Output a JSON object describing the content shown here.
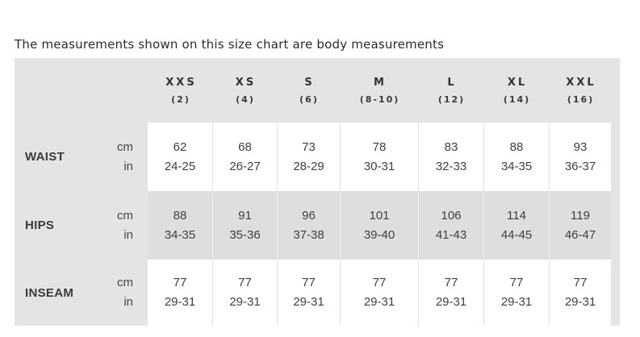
{
  "page": {
    "title": "The measurements shown on this size chart are body measurements"
  },
  "table": {
    "columns": [
      {
        "size": "XXS",
        "numeric": "(2)"
      },
      {
        "size": "XS",
        "numeric": "(4)"
      },
      {
        "size": "S",
        "numeric": "(6)"
      },
      {
        "size": "M",
        "numeric": "(8-10)"
      },
      {
        "size": "L",
        "numeric": "(12)"
      },
      {
        "size": "XL",
        "numeric": "(14)"
      },
      {
        "size": "XXL",
        "numeric": "(16)"
      }
    ],
    "unit_labels": {
      "primary": "cm",
      "secondary": "in"
    },
    "rows": [
      {
        "label": "WAIST",
        "cells": [
          {
            "cm": "62",
            "in": "24-25"
          },
          {
            "cm": "68",
            "in": "26-27"
          },
          {
            "cm": "73",
            "in": "28-29"
          },
          {
            "cm": "78",
            "in": "30-31"
          },
          {
            "cm": "83",
            "in": "32-33"
          },
          {
            "cm": "88",
            "in": "34-35"
          },
          {
            "cm": "93",
            "in": "36-37"
          }
        ]
      },
      {
        "label": "HIPS",
        "cells": [
          {
            "cm": "88",
            "in": "34-35"
          },
          {
            "cm": "91",
            "in": "35-36"
          },
          {
            "cm": "96",
            "in": "37-38"
          },
          {
            "cm": "101",
            "in": "39-40"
          },
          {
            "cm": "106",
            "in": "41-43"
          },
          {
            "cm": "114",
            "in": "44-45"
          },
          {
            "cm": "119",
            "in": "46-47"
          }
        ]
      },
      {
        "label": "INSEAM",
        "cells": [
          {
            "cm": "77",
            "in": "29-31"
          },
          {
            "cm": "77",
            "in": "29-31"
          },
          {
            "cm": "77",
            "in": "29-31"
          },
          {
            "cm": "77",
            "in": "29-31"
          },
          {
            "cm": "77",
            "in": "29-31"
          },
          {
            "cm": "77",
            "in": "29-31"
          },
          {
            "cm": "77",
            "in": "29-31"
          }
        ]
      }
    ]
  },
  "colors": {
    "page_background": "#ffffff",
    "table_background": "#e4e4e4",
    "white_cell": "#ffffff",
    "gray_cell": "#dedede",
    "white_row_divider": "#e0e0e0",
    "gray_row_divider": "#efefef",
    "text": "#3f3f3f",
    "header_text": "#333333"
  }
}
